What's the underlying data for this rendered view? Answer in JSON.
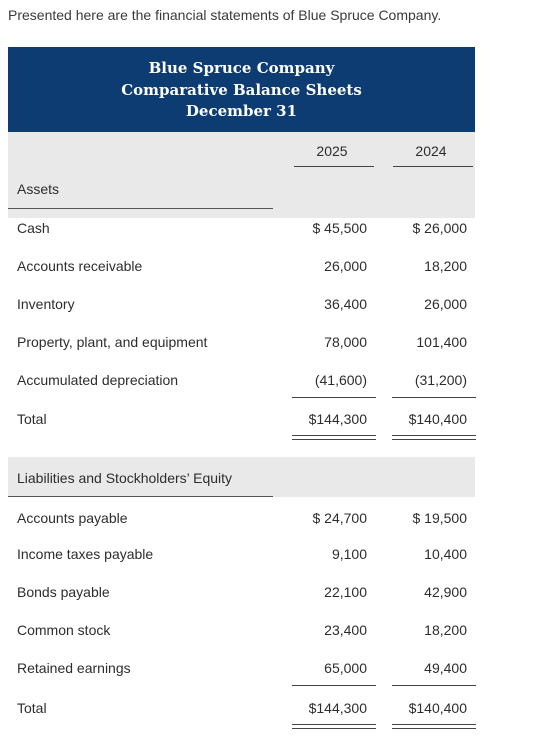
{
  "intro": "Presented here are the financial statements of Blue Spruce Company.",
  "header": {
    "company": "Blue Spruce Company",
    "statement": "Comparative Balance Sheets",
    "date": "December 31"
  },
  "years": [
    "2025",
    "2024"
  ],
  "assets": {
    "title": "Assets",
    "rows": [
      {
        "label": "Cash",
        "y2025": "$ 45,500",
        "y2024": "$ 26,000"
      },
      {
        "label": "Accounts receivable",
        "y2025": "26,000",
        "y2024": "18,200"
      },
      {
        "label": "Inventory",
        "y2025": "36,400",
        "y2024": "26,000"
      },
      {
        "label": "Property, plant, and equipment",
        "y2025": "78,000",
        "y2024": "101,400"
      },
      {
        "label": "Accumulated depreciation",
        "y2025": "(41,600)",
        "y2024": "(31,200)"
      },
      {
        "label": "Total",
        "y2025": "$144,300",
        "y2024": "$140,400"
      }
    ]
  },
  "liabilities": {
    "title": "Liabilities and Stockholders’ Equity",
    "rows": [
      {
        "label": "Accounts payable",
        "y2025": "$ 24,700",
        "y2024": "$ 19,500"
      },
      {
        "label": "Income taxes payable",
        "y2025": "9,100",
        "y2024": "10,400"
      },
      {
        "label": "Bonds payable",
        "y2025": "22,100",
        "y2024": "42,900"
      },
      {
        "label": "Common stock",
        "y2025": "23,400",
        "y2024": "18,200"
      },
      {
        "label": "Retained earnings",
        "y2025": "65,000",
        "y2024": "49,400"
      },
      {
        "label": "Total",
        "y2025": "$144,300",
        "y2024": "$140,400"
      }
    ]
  }
}
